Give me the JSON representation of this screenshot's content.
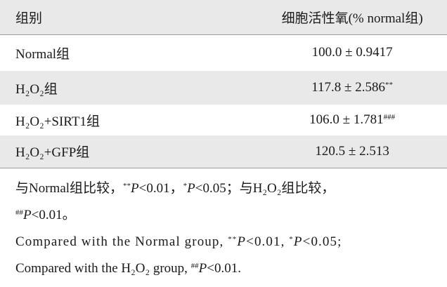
{
  "table": {
    "header": [
      "组别",
      "细胞活性氧(% normal组)"
    ],
    "rows": [
      {
        "group": "Normal组",
        "value": "100.0 ± 0.9417"
      },
      {
        "group": "H₂O₂组",
        "value": "117.8 ± 2.586",
        "mark": "**"
      },
      {
        "group": "H₂O₂+SIRT1组",
        "value": "106.0 ± 1.781",
        "mark": "###"
      },
      {
        "group": "H₂O₂+GFP组",
        "value": "120.5 ± 2.513"
      }
    ]
  },
  "notes": [
    [
      "与Normal组比较，",
      "**",
      "P",
      "<0.01，",
      "*",
      "P",
      "<0.05；与H₂O₂组比较，",
      "##",
      "P",
      "<0.01。"
    ],
    [
      "Compared with the Normal group, ",
      "**",
      "P",
      "<0.01, ",
      "*",
      "P",
      "<0.05;"
    ],
    [
      "Compared with the H₂O₂ group, ",
      "##",
      "P",
      "<0.01."
    ]
  ]
}
